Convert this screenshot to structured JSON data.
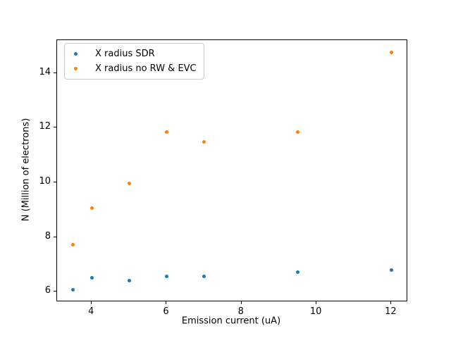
{
  "chart_data": {
    "type": "scatter",
    "x": [
      3.5,
      4.0,
      5.0,
      6.0,
      7.0,
      9.5,
      12.0
    ],
    "series": [
      {
        "name": "X radius SDR",
        "color": "#1f77b4",
        "values": [
          6.07,
          6.5,
          6.4,
          6.55,
          6.55,
          6.7,
          6.8
        ]
      },
      {
        "name": "X radius no RW & EVC",
        "color": "#ff7f0e",
        "values": [
          7.72,
          9.06,
          9.95,
          11.85,
          11.47,
          11.85,
          14.77
        ]
      }
    ],
    "xlabel": "Emission current (uA)",
    "ylabel": "N (Million of electrons)",
    "xlim": [
      3.075,
      12.425
    ],
    "ylim": [
      5.64,
      15.21
    ],
    "xticks": [
      4,
      6,
      8,
      10,
      12
    ],
    "yticks": [
      6,
      8,
      10,
      12,
      14
    ],
    "grid": false,
    "legend_position": "upper left"
  },
  "colors": {
    "figure_background": "#ffffff",
    "spine": "#000000",
    "legend_border": "#cccccc",
    "text": "#000000"
  }
}
